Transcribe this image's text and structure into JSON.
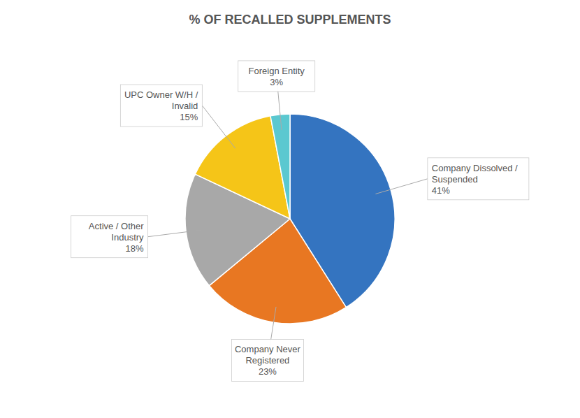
{
  "chart_data": {
    "type": "pie",
    "title": "% OF RECALLED SUPPLEMENTS",
    "categories": [
      "Company Dissolved /\nSuspended",
      "Company Never\nRegistered",
      "Active / Other\nIndustry",
      "UPC Owner W/H /\nInvalid",
      "Foreign Entity"
    ],
    "values": [
      41,
      23,
      18,
      15,
      3
    ],
    "value_labels": [
      "41%",
      "23%",
      "18%",
      "15%",
      "3%"
    ],
    "data_labels": true,
    "colors": [
      "#3474C0",
      "#E87722",
      "#A8A8A8",
      "#F5C518",
      "#5BC8D0"
    ]
  }
}
